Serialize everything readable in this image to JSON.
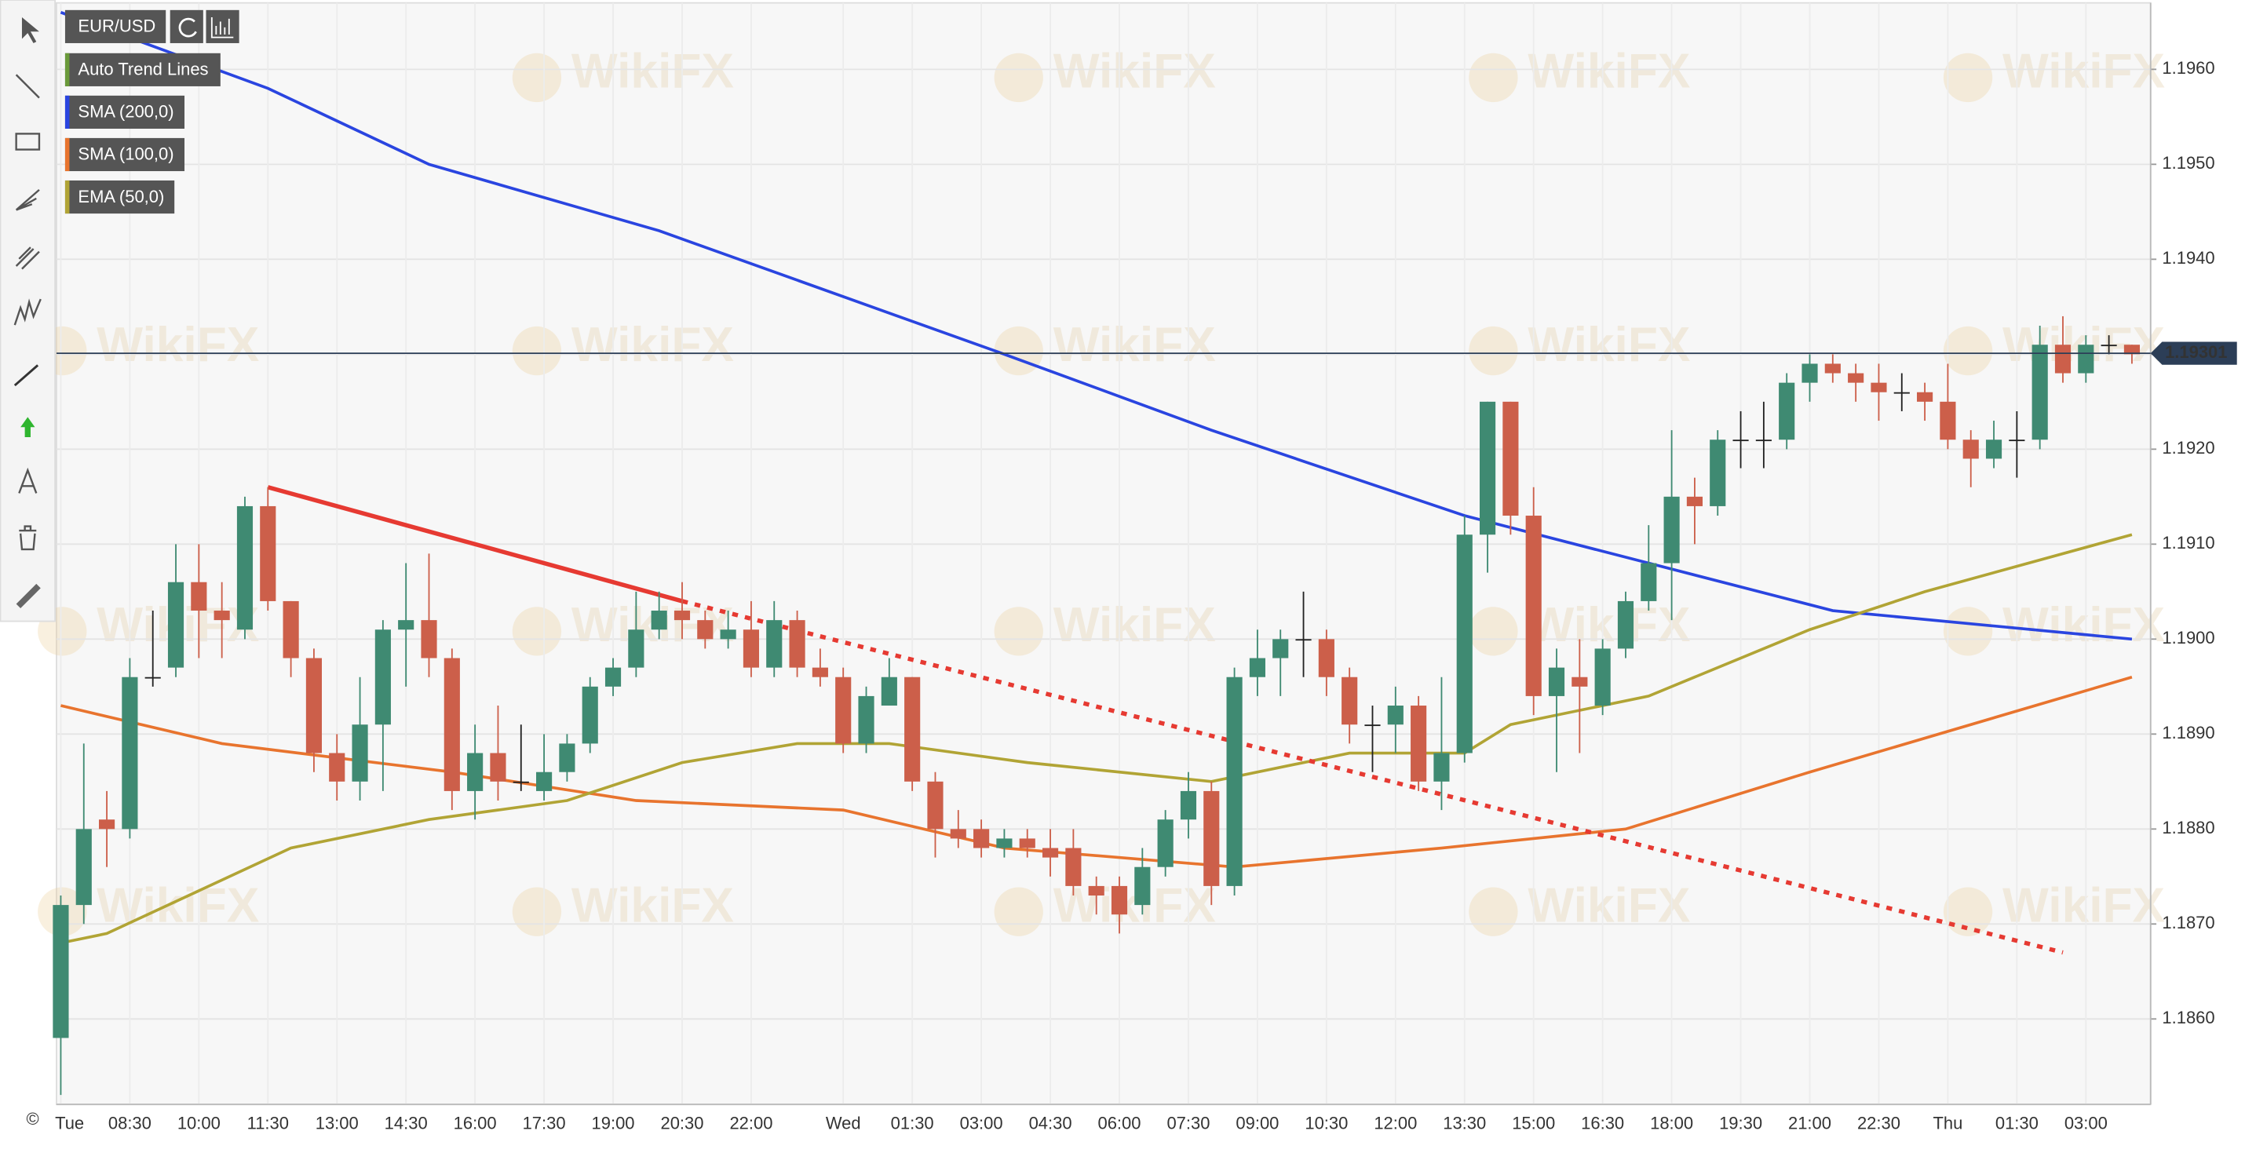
{
  "chart_data": {
    "type": "candlestick",
    "symbol": "EUR/USD",
    "categories": [
      "Tue",
      null,
      null,
      "08:30",
      null,
      null,
      "10:00",
      null,
      null,
      "11:30",
      null,
      null,
      "13:00",
      null,
      null,
      "14:30",
      null,
      null,
      "16:00",
      null,
      null,
      "17:30",
      null,
      null,
      "19:00",
      null,
      null,
      "20:30",
      null,
      null,
      "22:00",
      null,
      null,
      null,
      "Wed",
      null,
      null,
      "01:30",
      null,
      null,
      "03:00",
      null,
      null,
      "04:30",
      null,
      null,
      "06:00",
      null,
      null,
      "07:30",
      null,
      null,
      "09:00",
      null,
      null,
      "10:30",
      null,
      null,
      "12:00",
      null,
      null,
      "13:30",
      null,
      null,
      "15:00",
      null,
      null,
      "16:30",
      null,
      null,
      "18:00",
      null,
      null,
      "19:30",
      null,
      null,
      "21:00",
      null,
      null,
      "22:30",
      null,
      null,
      "Thu",
      null,
      null,
      "01:30",
      null,
      null,
      "03:00",
      null,
      null
    ],
    "open": [
      1.1858,
      1.1872,
      1.1881,
      1.188,
      1.1896,
      1.1897,
      1.1906,
      1.1903,
      1.1901,
      1.1914,
      1.1904,
      1.1898,
      1.1888,
      1.1885,
      1.1891,
      1.1901,
      1.1902,
      1.1898,
      1.1884,
      1.1888,
      1.1885,
      1.1884,
      1.1886,
      1.1889,
      1.1895,
      1.1897,
      1.1901,
      1.1903,
      1.1902,
      1.19,
      1.1901,
      1.1897,
      1.1902,
      1.1897,
      1.1896,
      1.1889,
      1.1893,
      1.1896,
      1.1885,
      1.188,
      1.188,
      1.1878,
      1.1879,
      1.1878,
      1.1878,
      1.1874,
      1.1874,
      1.1872,
      1.1876,
      1.1881,
      1.1884,
      1.1874,
      1.1896,
      1.1898,
      1.19,
      1.19,
      1.1896,
      1.1891,
      1.1891,
      1.1893,
      1.1885,
      1.1888,
      1.1911,
      1.1925,
      1.1913,
      1.1894,
      1.1896,
      1.1893,
      1.1899,
      1.1904,
      1.1908,
      1.1915,
      1.1914,
      1.1921,
      1.1921,
      1.1921,
      1.1927,
      1.1929,
      1.1928,
      1.1927,
      1.1926,
      1.1926,
      1.1925,
      1.1921,
      1.1919,
      1.1921,
      1.1921,
      1.1931,
      1.1928,
      1.1931,
      1.1931
    ],
    "high": [
      1.1873,
      1.1889,
      1.1884,
      1.1898,
      1.1903,
      1.191,
      1.191,
      1.1906,
      1.1915,
      1.1916,
      1.1904,
      1.1899,
      1.189,
      1.1896,
      1.1902,
      1.1908,
      1.1909,
      1.1899,
      1.1891,
      1.1893,
      1.1891,
      1.189,
      1.189,
      1.1896,
      1.1898,
      1.1905,
      1.1905,
      1.1906,
      1.1903,
      1.1903,
      1.1904,
      1.1904,
      1.1903,
      1.1899,
      1.1897,
      1.1895,
      1.1898,
      1.1896,
      1.1886,
      1.1882,
      1.1881,
      1.188,
      1.188,
      1.188,
      1.188,
      1.1875,
      1.1875,
      1.1878,
      1.1882,
      1.1886,
      1.1885,
      1.1897,
      1.1901,
      1.1901,
      1.1905,
      1.1901,
      1.1897,
      1.1893,
      1.1895,
      1.1894,
      1.1896,
      1.1913,
      1.1925,
      1.1925,
      1.1916,
      1.1899,
      1.19,
      1.19,
      1.1905,
      1.1912,
      1.1922,
      1.1917,
      1.1922,
      1.1924,
      1.1925,
      1.1928,
      1.193,
      1.193,
      1.1929,
      1.1929,
      1.1928,
      1.1927,
      1.1929,
      1.1922,
      1.1923,
      1.1924,
      1.1933,
      1.1934,
      1.1932,
      1.1932,
      1.1931
    ],
    "low": [
      1.1852,
      1.187,
      1.1876,
      1.1879,
      1.1895,
      1.1896,
      1.1898,
      1.1898,
      1.19,
      1.1903,
      1.1896,
      1.1886,
      1.1883,
      1.1883,
      1.1884,
      1.1895,
      1.1896,
      1.1882,
      1.1881,
      1.1883,
      1.1884,
      1.1883,
      1.1885,
      1.1888,
      1.1894,
      1.1896,
      1.19,
      1.19,
      1.1899,
      1.1899,
      1.1896,
      1.1896,
      1.1896,
      1.1895,
      1.1888,
      1.1888,
      1.1893,
      1.1884,
      1.1877,
      1.1878,
      1.1877,
      1.1877,
      1.1877,
      1.1875,
      1.1873,
      1.1871,
      1.1869,
      1.1871,
      1.1875,
      1.1879,
      1.1872,
      1.1873,
      1.1894,
      1.1894,
      1.1896,
      1.1894,
      1.1889,
      1.1886,
      1.1888,
      1.1884,
      1.1882,
      1.1887,
      1.1907,
      1.1911,
      1.1892,
      1.1886,
      1.1888,
      1.1892,
      1.1898,
      1.1903,
      1.1902,
      1.191,
      1.1913,
      1.1918,
      1.1918,
      1.192,
      1.1925,
      1.1927,
      1.1925,
      1.1923,
      1.1924,
      1.1923,
      1.192,
      1.1916,
      1.1918,
      1.1917,
      1.192,
      1.1927,
      1.1927,
      1.193,
      1.1929
    ],
    "close": [
      1.1872,
      1.188,
      1.188,
      1.1896,
      1.1896,
      1.1906,
      1.1903,
      1.1902,
      1.1914,
      1.1904,
      1.1898,
      1.1888,
      1.1885,
      1.1891,
      1.1901,
      1.1902,
      1.1898,
      1.1884,
      1.1888,
      1.1885,
      1.1885,
      1.1886,
      1.1889,
      1.1895,
      1.1897,
      1.1901,
      1.1903,
      1.1902,
      1.19,
      1.1901,
      1.1897,
      1.1902,
      1.1897,
      1.1896,
      1.1889,
      1.1894,
      1.1896,
      1.1885,
      1.188,
      1.1879,
      1.1878,
      1.1879,
      1.1878,
      1.1877,
      1.1874,
      1.1873,
      1.1871,
      1.1876,
      1.1881,
      1.1884,
      1.1874,
      1.1896,
      1.1898,
      1.19,
      1.19,
      1.1896,
      1.1891,
      1.1891,
      1.1893,
      1.1885,
      1.1888,
      1.1911,
      1.1925,
      1.1913,
      1.1894,
      1.1897,
      1.1895,
      1.1899,
      1.1904,
      1.1908,
      1.1915,
      1.1914,
      1.1921,
      1.1921,
      1.1921,
      1.1927,
      1.1929,
      1.1928,
      1.1927,
      1.1926,
      1.1926,
      1.1925,
      1.1921,
      1.1919,
      1.1921,
      1.1921,
      1.1931,
      1.1928,
      1.1931,
      1.1931,
      1.193
    ],
    "up_color": "#3f8a72",
    "down_color": "#cc5f4a",
    "ylim": [
      1.1851,
      1.1967
    ],
    "yticks": [
      {
        "value": 1.186,
        "label": "1.1860"
      },
      {
        "value": 1.187,
        "label": "1.1870"
      },
      {
        "value": 1.188,
        "label": "1.1880"
      },
      {
        "value": 1.189,
        "label": "1.1890"
      },
      {
        "value": 1.19,
        "label": "1.1900"
      },
      {
        "value": 1.191,
        "label": "1.1910"
      },
      {
        "value": 1.192,
        "label": "1.1920"
      },
      {
        "value": 1.193,
        "label": "1.1930"
      },
      {
        "value": 1.194,
        "label": "1.1940"
      },
      {
        "value": 1.195,
        "label": "1.1950"
      },
      {
        "value": 1.196,
        "label": "1.1960"
      }
    ],
    "grid": true,
    "last_price": 1.19301,
    "trend_line": {
      "name": "Auto Trend Lines",
      "color": "#e63a32",
      "x": [
        9,
        27,
        87
      ],
      "values": [
        1.1916,
        1.1904,
        1.1867
      ]
    },
    "indicators": [
      {
        "name": "SMA (200,0)",
        "color": "#2a45e0",
        "x": [
          0,
          9,
          16,
          26,
          41,
          50,
          61,
          69,
          77,
          90
        ],
        "values": [
          1.1966,
          1.1958,
          1.195,
          1.1943,
          1.193,
          1.1922,
          1.1913,
          1.1908,
          1.1903,
          1.19
        ]
      },
      {
        "name": "SMA (100,0)",
        "color": "#e8742e",
        "x": [
          0,
          7,
          17,
          25,
          34,
          41,
          51,
          60,
          68,
          76,
          90
        ],
        "values": [
          1.1893,
          1.1889,
          1.1886,
          1.1883,
          1.1882,
          1.1878,
          1.1876,
          1.1878,
          1.188,
          1.1886,
          1.1896
        ]
      },
      {
        "name": "EMA (50,0)",
        "color": "#b1a435",
        "x": [
          0,
          2,
          10,
          16,
          22,
          27,
          32,
          36,
          42,
          50,
          56,
          61,
          63,
          69,
          76,
          81,
          90
        ],
        "values": [
          1.1868,
          1.1869,
          1.1878,
          1.1881,
          1.1883,
          1.1887,
          1.1889,
          1.1889,
          1.1887,
          1.1885,
          1.1888,
          1.1888,
          1.1891,
          1.1894,
          1.1901,
          1.1905,
          1.1911
        ]
      }
    ],
    "watermark": "WikiFX"
  }
}
